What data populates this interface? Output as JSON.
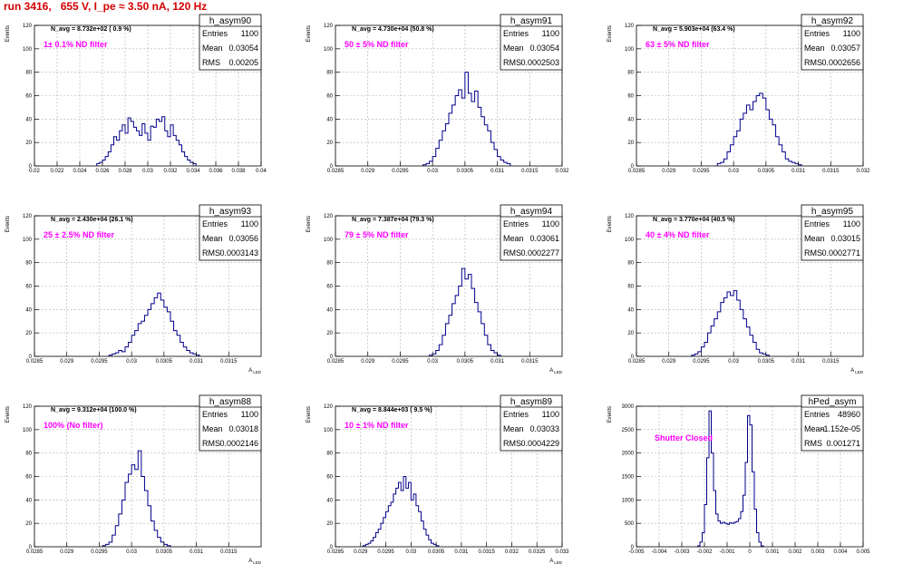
{
  "canvas_title": "run 3416,   655 V, I_pe ≈ 3.50 nA, 120 Hz",
  "colors": {
    "title": "#d40000",
    "histogram": "#00008b",
    "filter_label": "#ff00ff",
    "grid": "#b0b0b0",
    "axis": "#000000"
  },
  "chart_data": [
    {
      "type": "bar",
      "name": "h_asym90",
      "navg": "N_avg =  8.732e+02 ( 0.9 %)",
      "filter_label": "1± 0.1% ND filter",
      "stats": [
        [
          "Entries",
          "1100"
        ],
        [
          "Mean",
          "0.03054"
        ],
        [
          "RMS",
          "0.00205"
        ]
      ],
      "xlim": [
        0.02,
        0.04
      ],
      "ylim": [
        0,
        120
      ],
      "xticks": [
        0.02,
        0.022,
        0.024,
        0.026,
        0.028,
        0.03,
        0.032,
        0.034,
        0.036,
        0.038,
        0.04
      ],
      "xtick_labels": [
        "0.02",
        "0.022",
        "0.024",
        "0.026",
        "0.028",
        "0.03",
        "0.032",
        "0.034",
        "0.036",
        "0.038",
        "0.04"
      ],
      "yticks": [
        0,
        20,
        40,
        60,
        80,
        100,
        120
      ],
      "ytick_labels": [
        "0",
        "20",
        "40",
        "60",
        "80",
        "100",
        "120"
      ],
      "xlabel": "",
      "ylabel": "Events",
      "grid": true,
      "bin_start": 0.0255,
      "bin_width": 0.00025,
      "counts": [
        2,
        3,
        5,
        8,
        12,
        18,
        25,
        22,
        30,
        35,
        28,
        41,
        38,
        33,
        30,
        26,
        36,
        28,
        22,
        34,
        33,
        40,
        38,
        42,
        30,
        25,
        35,
        26,
        22,
        18,
        12,
        8,
        5,
        3,
        2
      ]
    },
    {
      "type": "bar",
      "name": "h_asym91",
      "navg": "N_avg =  4.730e+04 (50.8 %)",
      "filter_label": "50 ± 5% ND filter",
      "stats": [
        [
          "Entries",
          "1100"
        ],
        [
          "Mean",
          "0.03054"
        ],
        [
          "RMS",
          "0.0002503"
        ]
      ],
      "xlim": [
        0.0285,
        0.032
      ],
      "ylim": [
        0,
        120
      ],
      "xticks": [
        0.0285,
        0.029,
        0.0295,
        0.03,
        0.0305,
        0.031,
        0.0315,
        0.032
      ],
      "xtick_labels": [
        "0.0285",
        "0.029",
        "0.0295",
        "0.03",
        "0.0305",
        "0.031",
        "0.0315",
        "0.032"
      ],
      "yticks": [
        0,
        20,
        40,
        60,
        80,
        100,
        120
      ],
      "ytick_labels": [
        "0",
        "20",
        "40",
        "60",
        "80",
        "100",
        "120"
      ],
      "xlabel": "",
      "ylabel": "Events",
      "grid": true,
      "bin_start": 0.02985,
      "bin_width": 5e-05,
      "counts": [
        1,
        2,
        4,
        8,
        15,
        22,
        30,
        36,
        45,
        52,
        60,
        65,
        58,
        80,
        62,
        55,
        64,
        50,
        42,
        35,
        30,
        20,
        14,
        8,
        5,
        3,
        2
      ]
    },
    {
      "type": "bar",
      "name": "h_asym92",
      "navg": "N_avg =  5.903e+04 (63.4 %)",
      "filter_label": "63 ± 5% ND filter",
      "stats": [
        [
          "Entries",
          "1100"
        ],
        [
          "Mean",
          "0.03057"
        ],
        [
          "RMS",
          "0.0002656"
        ]
      ],
      "xlim": [
        0.0285,
        0.032
      ],
      "ylim": [
        0,
        120
      ],
      "xticks": [
        0.0285,
        0.029,
        0.0295,
        0.03,
        0.0305,
        0.031,
        0.0315,
        0.032
      ],
      "xtick_labels": [
        "0.0285",
        "0.029",
        "0.0295",
        "0.03",
        "0.0305",
        "0.031",
        "0.0315",
        "0.032"
      ],
      "yticks": [
        0,
        20,
        40,
        60,
        80,
        100,
        120
      ],
      "ytick_labels": [
        "0",
        "20",
        "40",
        "60",
        "80",
        "100",
        "120"
      ],
      "xlabel": "",
      "ylabel": "Events",
      "grid": true,
      "bin_start": 0.02975,
      "bin_width": 5e-05,
      "counts": [
        2,
        3,
        6,
        12,
        18,
        25,
        30,
        40,
        45,
        52,
        48,
        55,
        60,
        62,
        58,
        48,
        40,
        35,
        25,
        18,
        12,
        6,
        4,
        3,
        2,
        1
      ]
    },
    {
      "type": "bar",
      "name": "h_asym93",
      "navg": "N_avg =  2.430e+04 (26.1 %)",
      "filter_label": "25 ± 2.5% ND filter",
      "stats": [
        [
          "Entries",
          "1100"
        ],
        [
          "Mean",
          "0.03056"
        ],
        [
          "RMS",
          "0.0003143"
        ]
      ],
      "xlim": [
        0.0285,
        0.032
      ],
      "ylim": [
        0,
        120
      ],
      "xticks": [
        0.0285,
        0.029,
        0.0295,
        0.03,
        0.0305,
        0.031,
        0.0315
      ],
      "xtick_labels": [
        "0.0285",
        "0.029",
        "0.0295",
        "0.03",
        "0.0305",
        "0.031",
        "0.0315"
      ],
      "yticks": [
        0,
        20,
        40,
        60,
        80,
        100,
        120
      ],
      "ytick_labels": [
        "0",
        "20",
        "40",
        "60",
        "80",
        "100",
        "120"
      ],
      "xlabel": "A_LED",
      "ylabel": "Events",
      "grid": true,
      "bin_start": 0.02965,
      "bin_width": 5e-05,
      "counts": [
        1,
        2,
        3,
        5,
        4,
        8,
        12,
        18,
        22,
        28,
        30,
        35,
        40,
        45,
        50,
        54,
        48,
        42,
        38,
        30,
        22,
        18,
        12,
        8,
        5,
        3,
        2,
        1
      ]
    },
    {
      "type": "bar",
      "name": "h_asym94",
      "navg": "N_avg =  7.387e+04 (79.3 %)",
      "filter_label": "79 ± 5% ND filter",
      "stats": [
        [
          "Entries",
          "1100"
        ],
        [
          "Mean",
          "0.03061"
        ],
        [
          "RMS",
          "0.0002277"
        ]
      ],
      "xlim": [
        0.0285,
        0.032
      ],
      "ylim": [
        0,
        120
      ],
      "xticks": [
        0.0285,
        0.029,
        0.0295,
        0.03,
        0.0305,
        0.031,
        0.0315
      ],
      "xtick_labels": [
        "0.0285",
        "0.029",
        "0.0295",
        "0.03",
        "0.0305",
        "0.031",
        "0.0315"
      ],
      "yticks": [
        0,
        20,
        40,
        60,
        80,
        100,
        120
      ],
      "ytick_labels": [
        "0",
        "20",
        "40",
        "60",
        "80",
        "100",
        "120"
      ],
      "xlabel": "A_LED",
      "ylabel": "Events",
      "grid": true,
      "bin_start": 0.02995,
      "bin_width": 5e-05,
      "counts": [
        1,
        2,
        5,
        10,
        18,
        28,
        35,
        45,
        52,
        60,
        75,
        66,
        70,
        58,
        46,
        38,
        28,
        18,
        10,
        5,
        3,
        1
      ]
    },
    {
      "type": "bar",
      "name": "h_asym95",
      "navg": "N_avg =  3.770e+04 (40.5 %)",
      "filter_label": "40 ± 4% ND filter",
      "stats": [
        [
          "Entries",
          "1100"
        ],
        [
          "Mean",
          "0.03015"
        ],
        [
          "RMS",
          "0.0002771"
        ]
      ],
      "xlim": [
        0.0285,
        0.032
      ],
      "ylim": [
        0,
        120
      ],
      "xticks": [
        0.0285,
        0.029,
        0.0295,
        0.03,
        0.0305,
        0.031,
        0.0315
      ],
      "xtick_labels": [
        "0.0285",
        "0.029",
        "0.0295",
        "0.03",
        "0.0305",
        "0.031",
        "0.0315"
      ],
      "yticks": [
        0,
        20,
        40,
        60,
        80,
        100,
        120
      ],
      "ytick_labels": [
        "0",
        "20",
        "40",
        "60",
        "80",
        "100",
        "120"
      ],
      "xlabel": "A_LED",
      "ylabel": "Events",
      "grid": true,
      "bin_start": 0.02935,
      "bin_width": 5e-05,
      "counts": [
        1,
        2,
        4,
        8,
        12,
        20,
        26,
        32,
        38,
        46,
        50,
        55,
        52,
        56,
        48,
        40,
        32,
        25,
        18,
        12,
        6,
        3,
        2,
        1
      ]
    },
    {
      "type": "bar",
      "name": "h_asym88",
      "navg": "N_avg =  9.312e+04 (100.0 %)",
      "filter_label": "100% (No filter)",
      "stats": [
        [
          "Entries",
          "1100"
        ],
        [
          "Mean",
          "0.03018"
        ],
        [
          "RMS",
          "0.0002146"
        ]
      ],
      "xlim": [
        0.0285,
        0.032
      ],
      "ylim": [
        0,
        120
      ],
      "xticks": [
        0.0285,
        0.029,
        0.0295,
        0.03,
        0.0305,
        0.031,
        0.0315
      ],
      "xtick_labels": [
        "0.0285",
        "0.029",
        "0.0295",
        "0.03",
        "0.0305",
        "0.031",
        "0.0315"
      ],
      "yticks": [
        0,
        20,
        40,
        60,
        80,
        100,
        120
      ],
      "ytick_labels": [
        "0",
        "20",
        "40",
        "60",
        "80",
        "100",
        "120"
      ],
      "xlabel": "A_LED",
      "ylabel": "Events",
      "grid": true,
      "bin_start": 0.02955,
      "bin_width": 5e-05,
      "counts": [
        1,
        2,
        4,
        10,
        18,
        28,
        40,
        55,
        62,
        70,
        66,
        82,
        60,
        48,
        35,
        22,
        14,
        8,
        4,
        2,
        1
      ]
    },
    {
      "type": "bar",
      "name": "h_asym89",
      "navg": "N_avg =  8.844e+03 ( 9.5 %)",
      "filter_label": "10 ± 1% ND filter",
      "stats": [
        [
          "Entries",
          "1100"
        ],
        [
          "Mean",
          "0.03033"
        ],
        [
          "RMS",
          "0.0004229"
        ]
      ],
      "xlim": [
        0.0285,
        0.033
      ],
      "ylim": [
        0,
        120
      ],
      "xticks": [
        0.0285,
        0.029,
        0.0295,
        0.03,
        0.0305,
        0.031,
        0.0315,
        0.032,
        0.0325,
        0.033
      ],
      "xtick_labels": [
        "0.0285",
        "0.029",
        "0.0295",
        "0.03",
        "0.0305",
        "0.031",
        "0.0315",
        "0.032",
        "0.0325",
        "0.033"
      ],
      "yticks": [
        0,
        20,
        40,
        60,
        80,
        100,
        120
      ],
      "ytick_labels": [
        "0",
        "20",
        "40",
        "60",
        "80",
        "100",
        "120"
      ],
      "xlabel": "A_LED",
      "ylabel": "Events",
      "grid": true,
      "bin_start": 0.02905,
      "bin_width": 5e-05,
      "counts": [
        1,
        2,
        3,
        5,
        8,
        12,
        15,
        20,
        25,
        30,
        35,
        38,
        45,
        50,
        55,
        48,
        60,
        50,
        55,
        40,
        45,
        35,
        30,
        22,
        15,
        10,
        6,
        3,
        2,
        1
      ]
    },
    {
      "type": "bar",
      "name": "hPed_asym",
      "navg": "",
      "filter_label": "Shutter Closed",
      "stats": [
        [
          "Entries",
          "48960"
        ],
        [
          "Mean",
          "-1.152e-05"
        ],
        [
          "RMS",
          "0.001271"
        ]
      ],
      "xlim": [
        -0.005,
        0.005
      ],
      "ylim": [
        0,
        3000
      ],
      "xticks": [
        -0.005,
        -0.004,
        -0.003,
        -0.002,
        -0.001,
        0,
        0.001,
        0.002,
        0.003,
        0.004,
        0.005
      ],
      "xtick_labels": [
        "-0.005",
        "-0.004",
        "-0.003",
        "-0.002",
        "-0.001",
        "0",
        "0.001",
        "0.002",
        "0.003",
        "0.004",
        "0.005"
      ],
      "yticks": [
        0,
        500,
        1000,
        1500,
        2000,
        2500,
        3000
      ],
      "ytick_labels": [
        "0",
        "500",
        "1000",
        "1500",
        "2000",
        "2500",
        "3000"
      ],
      "xlabel": "",
      "ylabel": "Events",
      "grid": true,
      "bin_start": -0.0023,
      "bin_width": 0.0001,
      "counts": [
        20,
        100,
        300,
        900,
        1900,
        2900,
        2000,
        1200,
        700,
        550,
        500,
        520,
        500,
        480,
        510,
        500,
        520,
        540,
        600,
        750,
        1100,
        1800,
        2800,
        2600,
        1600,
        800,
        300,
        100,
        20
      ]
    }
  ]
}
